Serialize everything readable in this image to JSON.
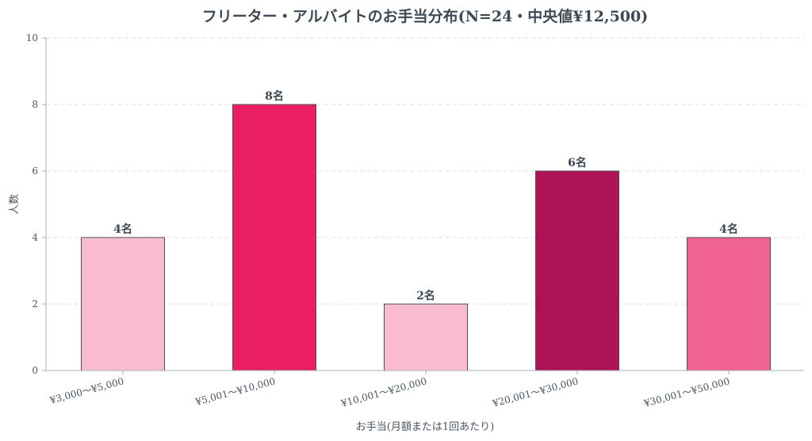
{
  "chart_data": {
    "type": "bar",
    "title": "フリーター・アルバイトのお手当分布(N=24・中央値¥12,500)",
    "xlabel": "お手当(月額または1回あたり)",
    "ylabel": "人数",
    "categories": [
      "¥3,000〜¥5,000",
      "¥5,001〜¥10,000",
      "¥10,001〜¥20,000",
      "¥20,001〜¥30,000",
      "¥30,001〜¥50,000"
    ],
    "values": [
      4,
      8,
      2,
      6,
      4
    ],
    "data_labels": [
      "4名",
      "8名",
      "2名",
      "6名",
      "4名"
    ],
    "bar_colors": [
      "#f8bbd0",
      "#e91e63",
      "#f8bbd0",
      "#ad1457",
      "#f06292"
    ],
    "ylim": [
      0,
      10
    ],
    "yticks": [
      "0",
      "2",
      "4",
      "6",
      "8",
      "10"
    ],
    "grid": true,
    "legend": "none"
  }
}
